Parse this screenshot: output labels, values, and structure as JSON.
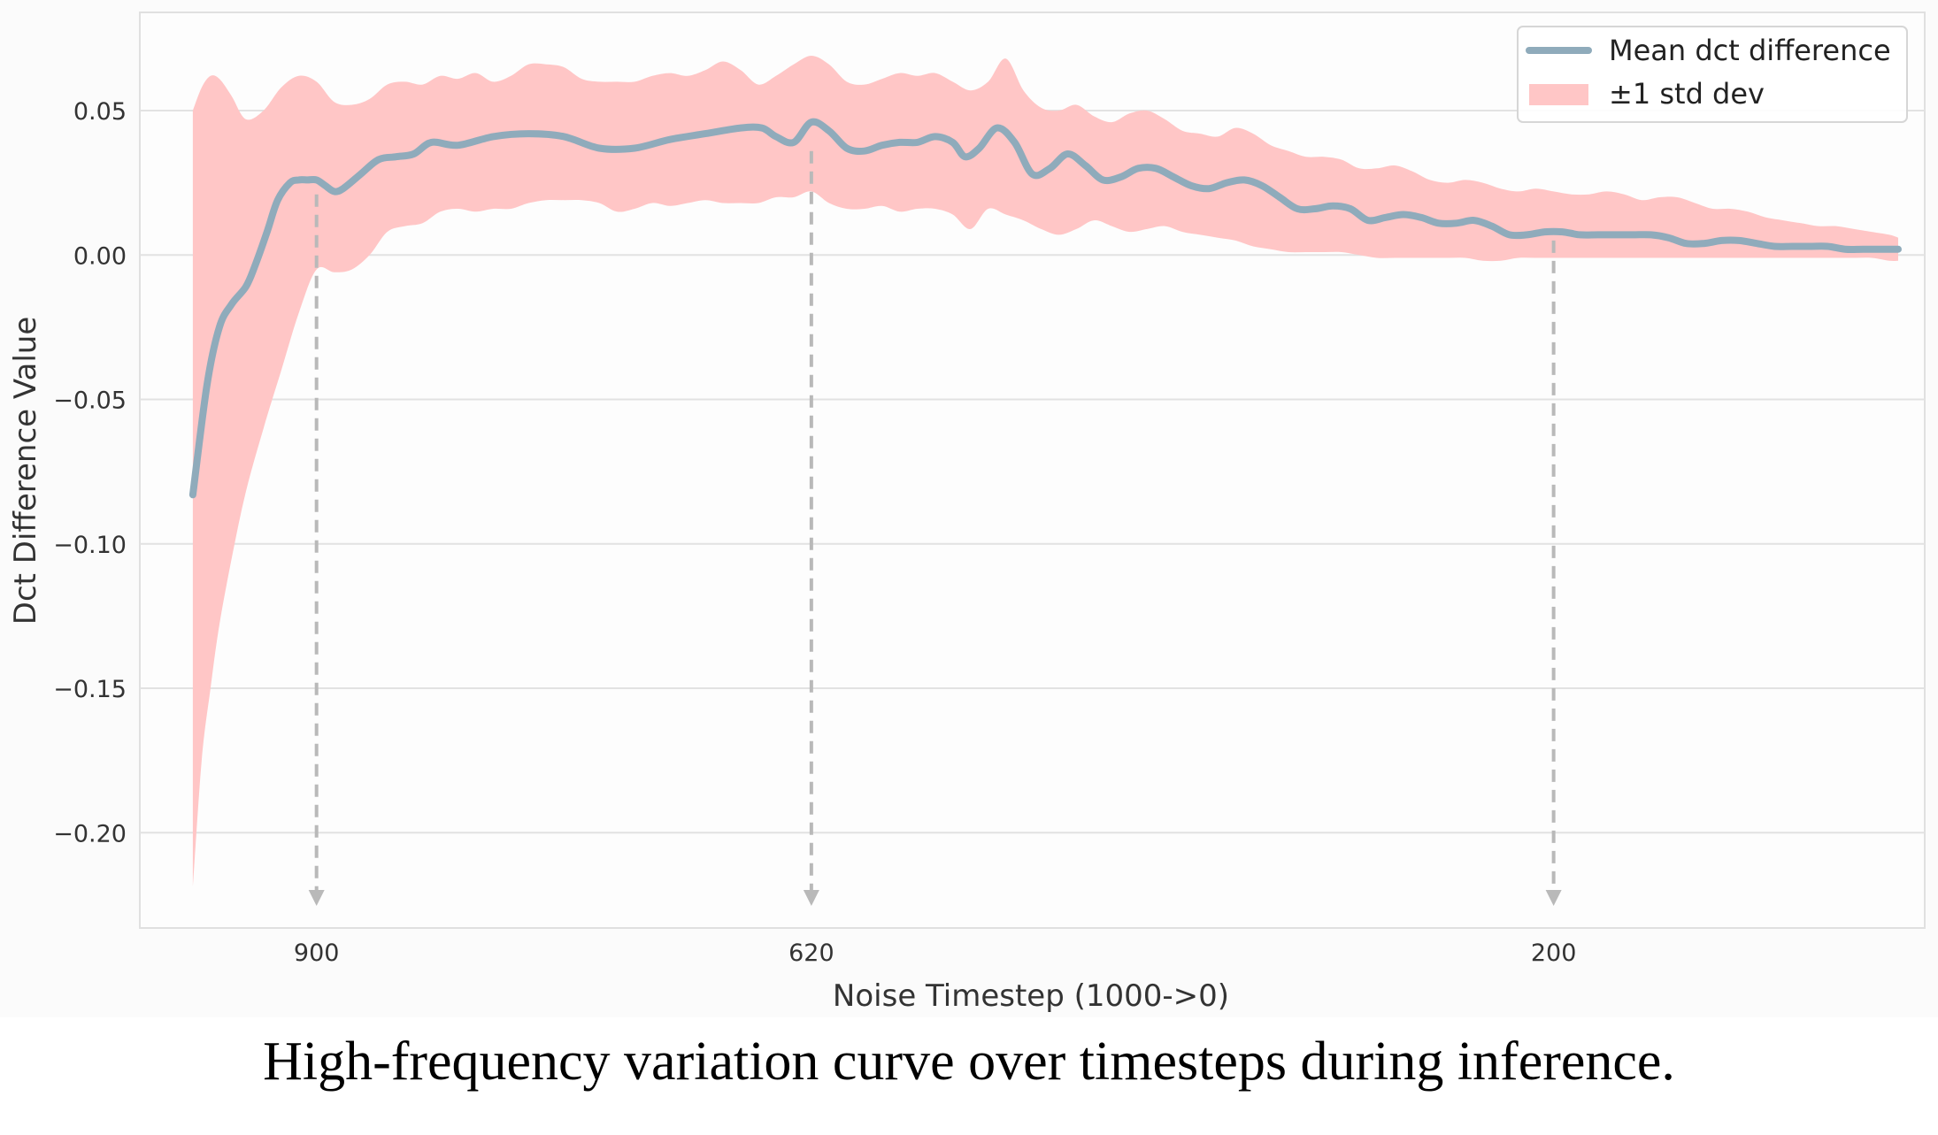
{
  "chart_data": {
    "type": "line",
    "title": "",
    "xlabel": "Noise Timestep (1000->0)",
    "ylabel": "Dct Difference Value",
    "xlim": [
      1000,
      -10
    ],
    "ylim": [
      -0.233,
      0.084
    ],
    "yticks": [
      0.05,
      0.0,
      -0.05,
      -0.1,
      -0.15,
      -0.2
    ],
    "ytick_labels": [
      "0.05",
      "0.00",
      "−0.05",
      "−0.10",
      "−0.15",
      "−0.20"
    ],
    "xticks": [
      900,
      620,
      200
    ],
    "xtick_labels": [
      "900",
      "620",
      "200"
    ],
    "grid": true,
    "legend_position": "top-right",
    "annotations": [
      {
        "type": "arrow",
        "x": 900,
        "from_y": 0.021
      },
      {
        "type": "arrow",
        "x": 620,
        "from_y": 0.036
      },
      {
        "type": "arrow",
        "x": 200,
        "from_y": 0.005
      }
    ],
    "series": [
      {
        "name": "Mean dct difference",
        "kind": "line",
        "color": "#8fabbb",
        "x": [
          970,
          962,
          955,
          948,
          940,
          935,
          928,
          922,
          915,
          910,
          905,
          900,
          895,
          890,
          885,
          875,
          865,
          855,
          845,
          835,
          820,
          800,
          780,
          760,
          740,
          720,
          700,
          680,
          660,
          648,
          640,
          630,
          620,
          610,
          600,
          590,
          580,
          570,
          560,
          550,
          540,
          533,
          525,
          515,
          505,
          495,
          485,
          475,
          465,
          455,
          445,
          435,
          425,
          415,
          405,
          395,
          385,
          375,
          365,
          355,
          345,
          335,
          325,
          315,
          305,
          295,
          285,
          275,
          265,
          255,
          245,
          235,
          225,
          215,
          205,
          195,
          185,
          175,
          165,
          155,
          145,
          135,
          125,
          115,
          105,
          95,
          85,
          75,
          65,
          55,
          45,
          35,
          25,
          15,
          5
        ],
        "mean": [
          -0.083,
          -0.045,
          -0.025,
          -0.017,
          -0.011,
          -0.004,
          0.008,
          0.019,
          0.025,
          0.026,
          0.026,
          0.026,
          0.024,
          0.022,
          0.023,
          0.028,
          0.033,
          0.034,
          0.035,
          0.039,
          0.038,
          0.041,
          0.042,
          0.041,
          0.037,
          0.037,
          0.04,
          0.042,
          0.044,
          0.044,
          0.041,
          0.039,
          0.046,
          0.043,
          0.037,
          0.036,
          0.038,
          0.039,
          0.039,
          0.041,
          0.039,
          0.034,
          0.037,
          0.044,
          0.039,
          0.028,
          0.03,
          0.035,
          0.031,
          0.026,
          0.027,
          0.03,
          0.03,
          0.027,
          0.024,
          0.023,
          0.025,
          0.026,
          0.024,
          0.02,
          0.016,
          0.016,
          0.017,
          0.016,
          0.012,
          0.013,
          0.014,
          0.013,
          0.011,
          0.011,
          0.012,
          0.01,
          0.007,
          0.007,
          0.008,
          0.008,
          0.007,
          0.007,
          0.007,
          0.007,
          0.007,
          0.006,
          0.004,
          0.004,
          0.005,
          0.005,
          0.004,
          0.003,
          0.003,
          0.003,
          0.003,
          0.002,
          0.002,
          0.002,
          0.002
        ]
      },
      {
        "name": "±1 std dev",
        "kind": "band",
        "color": "#ffc6c6",
        "x": [
          970,
          965,
          960,
          955,
          948,
          940,
          930,
          920,
          910,
          900,
          890,
          880,
          870,
          860,
          850,
          840,
          830,
          820,
          810,
          800,
          790,
          780,
          770,
          760,
          750,
          740,
          730,
          720,
          710,
          700,
          690,
          680,
          670,
          660,
          650,
          640,
          630,
          620,
          610,
          600,
          590,
          580,
          570,
          560,
          550,
          540,
          530,
          520,
          510,
          500,
          490,
          480,
          470,
          460,
          450,
          440,
          430,
          420,
          410,
          400,
          390,
          380,
          370,
          360,
          350,
          340,
          330,
          320,
          310,
          300,
          290,
          280,
          270,
          260,
          250,
          240,
          230,
          220,
          210,
          200,
          190,
          180,
          170,
          160,
          150,
          140,
          130,
          120,
          110,
          100,
          90,
          80,
          70,
          60,
          50,
          40,
          30,
          20,
          10,
          5
        ],
        "upper": [
          0.05,
          0.058,
          0.062,
          0.061,
          0.055,
          0.047,
          0.05,
          0.058,
          0.062,
          0.06,
          0.053,
          0.052,
          0.054,
          0.059,
          0.06,
          0.059,
          0.062,
          0.061,
          0.063,
          0.06,
          0.062,
          0.066,
          0.066,
          0.065,
          0.061,
          0.06,
          0.06,
          0.06,
          0.062,
          0.063,
          0.062,
          0.064,
          0.067,
          0.064,
          0.059,
          0.062,
          0.066,
          0.069,
          0.066,
          0.06,
          0.059,
          0.061,
          0.063,
          0.062,
          0.063,
          0.06,
          0.057,
          0.06,
          0.068,
          0.057,
          0.051,
          0.05,
          0.052,
          0.048,
          0.046,
          0.049,
          0.05,
          0.047,
          0.043,
          0.042,
          0.041,
          0.044,
          0.042,
          0.038,
          0.036,
          0.034,
          0.034,
          0.033,
          0.03,
          0.03,
          0.031,
          0.029,
          0.026,
          0.025,
          0.026,
          0.025,
          0.023,
          0.022,
          0.023,
          0.022,
          0.021,
          0.021,
          0.022,
          0.021,
          0.019,
          0.02,
          0.02,
          0.018,
          0.016,
          0.016,
          0.015,
          0.013,
          0.012,
          0.011,
          0.01,
          0.01,
          0.009,
          0.008,
          0.007,
          0.006
        ],
        "lower": [
          -0.219,
          -0.175,
          -0.15,
          -0.128,
          -0.105,
          -0.082,
          -0.06,
          -0.04,
          -0.02,
          -0.005,
          -0.006,
          -0.005,
          0.0,
          0.008,
          0.01,
          0.011,
          0.015,
          0.016,
          0.015,
          0.016,
          0.016,
          0.018,
          0.019,
          0.019,
          0.019,
          0.018,
          0.015,
          0.016,
          0.018,
          0.017,
          0.018,
          0.019,
          0.018,
          0.018,
          0.018,
          0.02,
          0.02,
          0.022,
          0.018,
          0.016,
          0.016,
          0.017,
          0.015,
          0.016,
          0.016,
          0.014,
          0.009,
          0.016,
          0.014,
          0.012,
          0.009,
          0.007,
          0.009,
          0.012,
          0.01,
          0.008,
          0.009,
          0.01,
          0.008,
          0.007,
          0.006,
          0.005,
          0.003,
          0.002,
          0.001,
          0.001,
          0.001,
          0.001,
          0.0,
          -0.001,
          -0.001,
          -0.001,
          -0.001,
          -0.001,
          -0.001,
          -0.002,
          -0.002,
          -0.001,
          -0.001,
          -0.001,
          -0.001,
          -0.001,
          -0.001,
          -0.001,
          -0.001,
          -0.001,
          -0.001,
          -0.001,
          -0.001,
          -0.001,
          -0.001,
          -0.001,
          -0.001,
          -0.001,
          -0.001,
          -0.001,
          -0.001,
          -0.001,
          -0.002,
          -0.002
        ]
      }
    ]
  },
  "caption": "High-frequency variation curve over timesteps during inference."
}
